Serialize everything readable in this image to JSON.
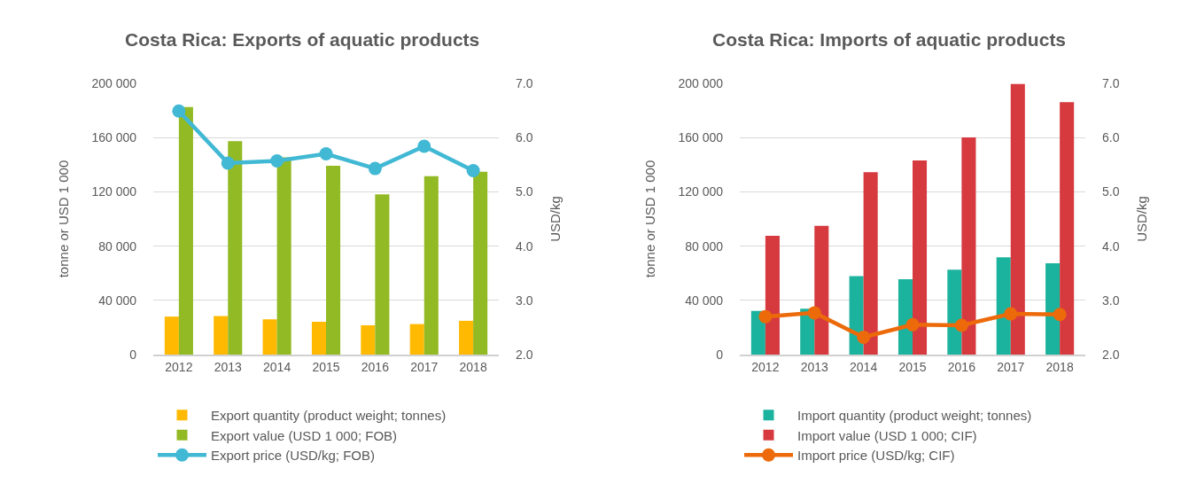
{
  "chart_data": [
    {
      "type": "bar",
      "title": "Costa Rica: Exports of aquatic products",
      "categories": [
        "2012",
        "2013",
        "2014",
        "2015",
        "2016",
        "2017",
        "2018"
      ],
      "ylabel": "tonne or USD 1 000",
      "y2label": "USD/kg",
      "ylim": [
        0,
        200000
      ],
      "yticks": [
        0,
        {
          "value": 40000,
          "label": "40 000"
        },
        {
          "value": 80000,
          "label": "80 000"
        },
        {
          "value": 120000,
          "label": "120 000"
        },
        {
          "value": 160000,
          "label": "160 000"
        },
        {
          "value": 200000,
          "label": "200 000"
        }
      ],
      "y2lim": [
        2,
        7
      ],
      "y2ticks": [
        {
          "value": 2,
          "label": "2.0"
        },
        {
          "value": 3,
          "label": "3.0"
        },
        {
          "value": 4,
          "label": "4.0"
        },
        {
          "value": 5,
          "label": "5.0"
        },
        {
          "value": 6,
          "label": "6.0"
        },
        {
          "value": 7,
          "label": "7.0"
        }
      ],
      "grid": "y",
      "legend": "bottom",
      "series": [
        {
          "name": "Export quantity (product weight; tonnes)",
          "color": "#ffb900",
          "values": [
            28000,
            28400,
            26000,
            24200,
            21600,
            22500,
            24900
          ]
        },
        {
          "name": "Export value (USD 1 000; FOB)",
          "color": "#92ba24",
          "values": [
            182500,
            157400,
            145500,
            139200,
            118200,
            131600,
            134800
          ]
        },
        {
          "name": "Export price (USD/kg; FOB)",
          "type": "line",
          "axis": "y2",
          "marker": "circle",
          "color": "#41b8d4",
          "values": [
            6.49,
            5.53,
            5.57,
            5.7,
            5.43,
            5.84,
            5.39
          ]
        }
      ]
    },
    {
      "type": "bar",
      "title": "Costa Rica: Imports of aquatic products",
      "categories": [
        "2012",
        "2013",
        "2014",
        "2015",
        "2016",
        "2017",
        "2018"
      ],
      "ylabel": "tonne or USD 1 000",
      "y2label": "USD/kg",
      "ylim": [
        0,
        200000
      ],
      "yticks": [
        0,
        {
          "value": 40000,
          "label": "40 000"
        },
        {
          "value": 80000,
          "label": "80 000"
        },
        {
          "value": 120000,
          "label": "120 000"
        },
        {
          "value": 160000,
          "label": "160 000"
        },
        {
          "value": 200000,
          "label": "200 000"
        }
      ],
      "y2lim": [
        2,
        7
      ],
      "y2ticks": [
        {
          "value": 2,
          "label": "2.0"
        },
        {
          "value": 3,
          "label": "3.0"
        },
        {
          "value": 4,
          "label": "4.0"
        },
        {
          "value": 5,
          "label": "5.0"
        },
        {
          "value": 6,
          "label": "6.0"
        },
        {
          "value": 7,
          "label": "7.0"
        }
      ],
      "grid": "y",
      "legend": "bottom",
      "series": [
        {
          "name": "Import quantity (product weight; tonnes)",
          "color": "#1bb39d",
          "values": [
            32200,
            33800,
            57900,
            55600,
            62500,
            71800,
            67300
          ]
        },
        {
          "name": "Import value (USD 1 000; CIF)",
          "color": "#d63a3f",
          "values": [
            87600,
            94900,
            134500,
            143200,
            160100,
            199500,
            186100
          ]
        },
        {
          "name": "Import price (USD/kg; CIF)",
          "type": "line",
          "axis": "y2",
          "marker": "circle",
          "color": "#ec6a0a",
          "values": [
            2.7,
            2.77,
            2.32,
            2.55,
            2.54,
            2.75,
            2.74
          ]
        }
      ]
    }
  ]
}
